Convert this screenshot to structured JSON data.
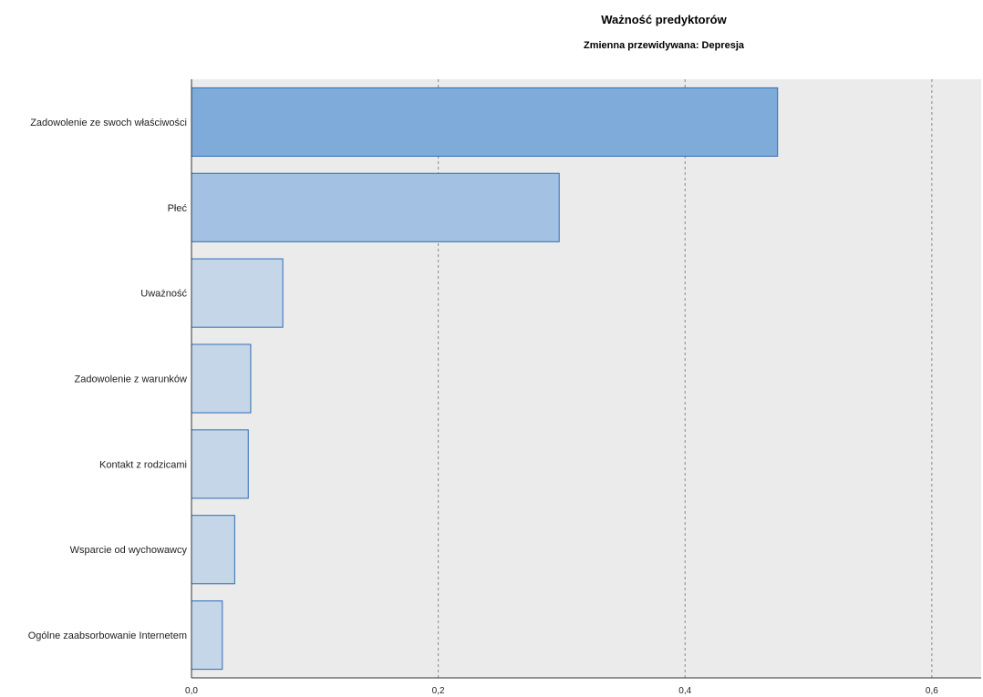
{
  "chart_data": {
    "type": "bar",
    "orientation": "horizontal",
    "title": "Ważność predyktorów",
    "subtitle": "Zmienna przewidywana: Depresja",
    "xlabel": "",
    "ylabel": "",
    "categories": [
      "Zadowolenie ze swoch właściwości",
      "Płeć",
      "Uważność",
      "Zadowolenie z warunków",
      "Kontakt z rodzicami",
      "Wsparcie od wychowawcy",
      "Ogólne zaabsorbowanie Internetem"
    ],
    "values": [
      0.475,
      0.298,
      0.074,
      0.048,
      0.046,
      0.035,
      0.025
    ],
    "xlim": [
      0,
      0.64
    ],
    "xticks": [
      0.0,
      0.2,
      0.4,
      0.6
    ],
    "xtick_labels": [
      "0,0",
      "0,2",
      "0,4",
      "0,6"
    ],
    "grid": "vertical dashed",
    "bar_colors": [
      "#7eabd9",
      "#a2c1e3",
      "#c5d6e8",
      "#c5d6e8",
      "#c5d6e8",
      "#c5d6e8",
      "#c5d6e8"
    ],
    "bar_edge_color": "#2f6db3",
    "plot_background": "#ebebeb"
  }
}
